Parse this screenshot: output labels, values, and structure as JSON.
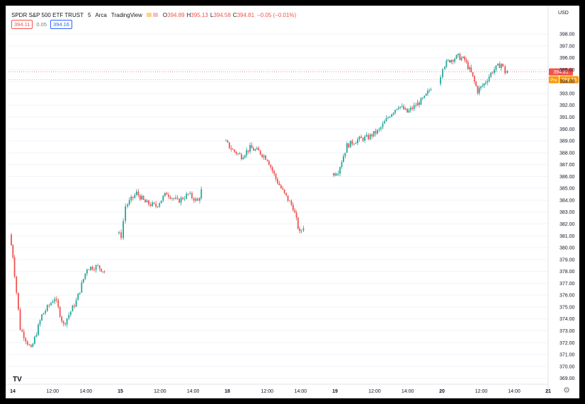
{
  "header": {
    "symbol": "SPDR S&P 500 ETF TRUST",
    "interval": "5",
    "exchange": "Arca",
    "source": "TradingView",
    "o_label": "O",
    "o_value": "394.89",
    "h_label": "H",
    "h_value": "395.13",
    "l_label": "L",
    "l_value": "394.58",
    "c_label": "C",
    "c_value": "394.81",
    "change": "−0.05 (−0.01%)"
  },
  "quote": {
    "bid": "394.11",
    "spread": "0.05",
    "ask": "394.16"
  },
  "currency": "USD",
  "price_labels": {
    "last": "394.81",
    "pre_tag": "Pre",
    "pre": "394.15"
  },
  "colors": {
    "up": "#26a69a",
    "down": "#ef5350",
    "pre": "#ff9800",
    "grid": "#f0f3fa"
  },
  "icons": {
    "logo": "tradingview-logo-icon",
    "settings": "gear-icon"
  },
  "logo_text": "TV",
  "chart_data": {
    "type": "candlestick",
    "ylim": [
      368.5,
      398.6
    ],
    "yticks": [
      "369.00",
      "370.00",
      "371.00",
      "372.00",
      "373.00",
      "374.00",
      "375.00",
      "376.00",
      "377.00",
      "378.00",
      "379.00",
      "380.00",
      "381.00",
      "382.00",
      "383.00",
      "384.00",
      "385.00",
      "386.00",
      "387.00",
      "388.00",
      "389.00",
      "390.00",
      "391.00",
      "392.00",
      "393.00",
      "394.00",
      "395.00",
      "396.00",
      "397.00",
      "398.00"
    ],
    "xticks": [
      "14",
      "12:00",
      "14:00",
      "15",
      "12:00",
      "14:00",
      "18",
      "12:00",
      "14:00",
      "19",
      "12:00",
      "14:00",
      "20",
      "12:00",
      "14:00",
      "21"
    ],
    "day_labels": [
      "14",
      "15",
      "18",
      "19",
      "20",
      "21"
    ],
    "sessions": [
      {
        "day": "14",
        "path": [
          [
            0,
            381.1
          ],
          [
            3,
            379.3
          ],
          [
            10,
            373.2
          ],
          [
            20,
            371.4
          ],
          [
            30,
            374.3
          ],
          [
            42,
            375.8
          ],
          [
            50,
            373.5
          ],
          [
            62,
            375.5
          ],
          [
            72,
            378.3
          ],
          [
            82,
            378.4
          ],
          [
            88,
            378.0
          ]
        ]
      },
      {
        "day": "15",
        "path": [
          [
            0,
            381.2
          ],
          [
            4,
            381.0
          ],
          [
            8,
            383.5
          ],
          [
            18,
            384.6
          ],
          [
            26,
            383.8
          ],
          [
            36,
            383.5
          ],
          [
            46,
            384.6
          ],
          [
            56,
            383.9
          ],
          [
            66,
            384.5
          ],
          [
            75,
            383.9
          ],
          [
            78,
            384.8
          ]
        ]
      },
      {
        "day": "18",
        "path": [
          [
            0,
            389.0
          ],
          [
            8,
            388.2
          ],
          [
            16,
            387.7
          ],
          [
            24,
            388.4
          ],
          [
            32,
            388.1
          ],
          [
            40,
            387.5
          ],
          [
            48,
            385.8
          ],
          [
            56,
            384.5
          ],
          [
            64,
            383.4
          ],
          [
            70,
            381.2
          ],
          [
            74,
            381.8
          ]
        ]
      },
      {
        "day": "19",
        "path": [
          [
            0,
            386.1
          ],
          [
            6,
            386.5
          ],
          [
            14,
            388.6
          ],
          [
            24,
            389.1
          ],
          [
            34,
            389.3
          ],
          [
            44,
            389.9
          ],
          [
            54,
            391.2
          ],
          [
            62,
            392.0
          ],
          [
            70,
            391.4
          ],
          [
            78,
            392.0
          ],
          [
            86,
            392.6
          ],
          [
            92,
            393.5
          ]
        ]
      },
      {
        "day": "20",
        "path": [
          [
            0,
            393.8
          ],
          [
            4,
            395.3
          ],
          [
            10,
            395.8
          ],
          [
            18,
            396.1
          ],
          [
            24,
            395.8
          ],
          [
            30,
            394.7
          ],
          [
            36,
            393.2
          ],
          [
            42,
            393.8
          ],
          [
            50,
            394.9
          ],
          [
            58,
            395.5
          ],
          [
            62,
            394.8
          ],
          [
            64,
            394.9
          ]
        ]
      }
    ]
  }
}
